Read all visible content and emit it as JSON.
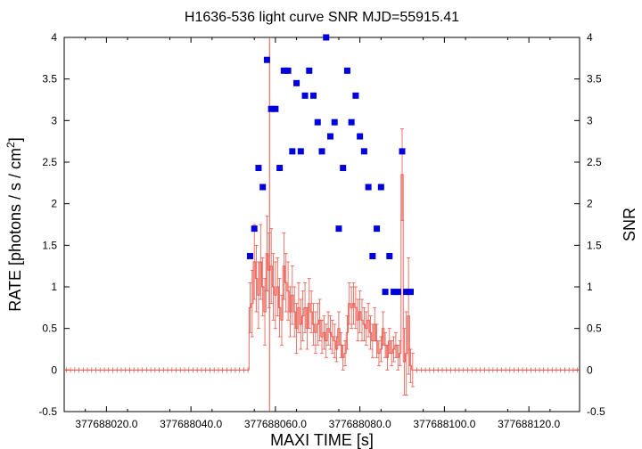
{
  "chart_data": {
    "type": "scatter",
    "title": "H1636-536 light curve  SNR MJD=55915.41",
    "xlabel": "MAXI TIME [s]",
    "ylabel_main": "RATE [photons / s / cm",
    "ylabel_sup": "2",
    "ylabel_close": "]",
    "y2label": "SNR",
    "xlim": [
      377688010,
      377688132
    ],
    "ylim": [
      -0.5,
      4
    ],
    "y2lim": [
      -0.5,
      4
    ],
    "x_tick_labels": [
      "377688020.0",
      "377688040.0",
      "377688060.0",
      "377688080.0",
      "377688100.0",
      "377688120.0"
    ],
    "x_tick_values": [
      377688020,
      377688040,
      377688060,
      377688080,
      377688100,
      377688120
    ],
    "y_ticks": [
      "-0.5",
      "0",
      "0.5",
      "1",
      "1.5",
      "2",
      "2.5",
      "3",
      "3.5",
      "4"
    ],
    "y_tick_values": [
      -0.5,
      0,
      0.5,
      1,
      1.5,
      2,
      2.5,
      3,
      3.5,
      4
    ],
    "marker_line_x": 377688058.6,
    "grid": false,
    "colors": {
      "rate": "#e8554a",
      "snr": "#0000dd",
      "marker": "#e8554a"
    },
    "series": [
      {
        "role": "rate",
        "x": [
          377688054,
          377688054.5,
          377688055,
          377688055.5,
          377688056,
          377688056.5,
          377688057,
          377688057.5,
          377688058,
          377688058.5,
          377688059,
          377688059.5,
          377688060,
          377688060.5,
          377688061,
          377688061.5,
          377688062,
          377688062.5,
          377688063,
          377688063.5,
          377688064,
          377688064.5,
          377688065,
          377688065.5,
          377688066,
          377688066.5,
          377688067,
          377688067.5,
          377688068,
          377688068.5,
          377688069,
          377688069.5,
          377688070,
          377688070.5,
          377688071,
          377688071.5,
          377688072,
          377688072.5,
          377688073,
          377688073.5,
          377688074,
          377688074.5,
          377688075,
          377688075.5,
          377688076,
          377688076.5,
          377688077,
          377688077.5,
          377688078,
          377688078.5,
          377688079,
          377688079.5,
          377688080,
          377688080.5,
          377688081,
          377688081.5,
          377688082,
          377688082.5,
          377688083,
          377688083.5,
          377688084,
          377688084.5,
          377688085,
          377688085.5,
          377688086,
          377688086.5,
          377688087,
          377688087.5,
          377688088,
          377688088.5,
          377688089,
          377688089.5,
          377688090,
          377688090.5,
          377688091,
          377688091.5,
          377688092,
          377688092.5
        ],
        "y": [
          0.75,
          0.8,
          1.3,
          1.1,
          0.9,
          1.3,
          1.0,
          0.7,
          1.4,
          1.2,
          1.25,
          1.0,
          0.9,
          1.0,
          0.75,
          0.6,
          1.25,
          1.05,
          0.95,
          0.7,
          0.9,
          0.7,
          0.5,
          0.75,
          0.55,
          0.65,
          0.75,
          0.5,
          0.8,
          0.7,
          0.55,
          0.45,
          0.55,
          0.6,
          0.4,
          0.45,
          0.35,
          0.5,
          0.45,
          0.4,
          0.35,
          0.25,
          0.5,
          0.3,
          0.15,
          0.2,
          0.45,
          0.8,
          0.75,
          0.8,
          0.75,
          0.6,
          0.7,
          0.6,
          0.55,
          0.5,
          0.6,
          0.45,
          0.35,
          0.55,
          0.35,
          0.2,
          0.25,
          0.5,
          0.3,
          0.15,
          0.35,
          0.2,
          0.25,
          0.3,
          0.15,
          0.2,
          2.35,
          0.1,
          0.2,
          0.65,
          0.05,
          0.0
        ],
        "yerr": [
          0.3,
          0.4,
          0.45,
          0.4,
          0.4,
          0.45,
          0.35,
          0.4,
          0.45,
          0.45,
          0.45,
          0.4,
          0.4,
          0.35,
          0.35,
          0.3,
          0.4,
          0.35,
          0.35,
          0.3,
          0.35,
          0.3,
          0.3,
          0.3,
          0.3,
          0.3,
          0.3,
          0.25,
          0.3,
          0.25,
          0.25,
          0.25,
          0.25,
          0.25,
          0.2,
          0.2,
          0.2,
          0.2,
          0.2,
          0.2,
          0.2,
          0.15,
          0.2,
          0.15,
          0.15,
          0.15,
          0.2,
          0.25,
          0.25,
          0.25,
          0.25,
          0.25,
          0.25,
          0.25,
          0.2,
          0.2,
          0.2,
          0.2,
          0.2,
          0.2,
          0.2,
          0.15,
          0.15,
          0.2,
          0.15,
          0.15,
          0.15,
          0.15,
          0.15,
          0.15,
          0.15,
          0.15,
          0.55,
          0.4,
          0.5,
          0.7,
          0.2,
          0.2
        ]
      },
      {
        "role": "snr",
        "x": [
          377688054,
          377688055,
          377688056,
          377688057,
          377688058,
          377688059,
          377688060,
          377688061,
          377688062,
          377688063,
          377688064,
          377688065,
          377688066,
          377688067,
          377688068,
          377688069,
          377688070,
          377688071,
          377688072,
          377688073,
          377688074,
          377688075,
          377688076,
          377688077,
          377688078,
          377688079,
          377688080,
          377688081,
          377688082,
          377688083,
          377688084,
          377688085,
          377688086,
          377688087,
          377688088,
          377688089,
          377688090,
          377688091,
          377688092
        ],
        "y": [
          1.37,
          1.7,
          2.43,
          2.2,
          3.73,
          3.14,
          3.14,
          2.43,
          3.6,
          3.6,
          2.63,
          3.45,
          2.63,
          3.3,
          3.6,
          3.3,
          2.98,
          2.63,
          4.0,
          2.81,
          2.98,
          1.7,
          2.43,
          3.6,
          2.98,
          3.3,
          2.81,
          2.63,
          2.2,
          1.37,
          1.7,
          2.2,
          0.94,
          1.37,
          0.94,
          0.94,
          2.63,
          0.94,
          0.94
        ]
      }
    ]
  }
}
